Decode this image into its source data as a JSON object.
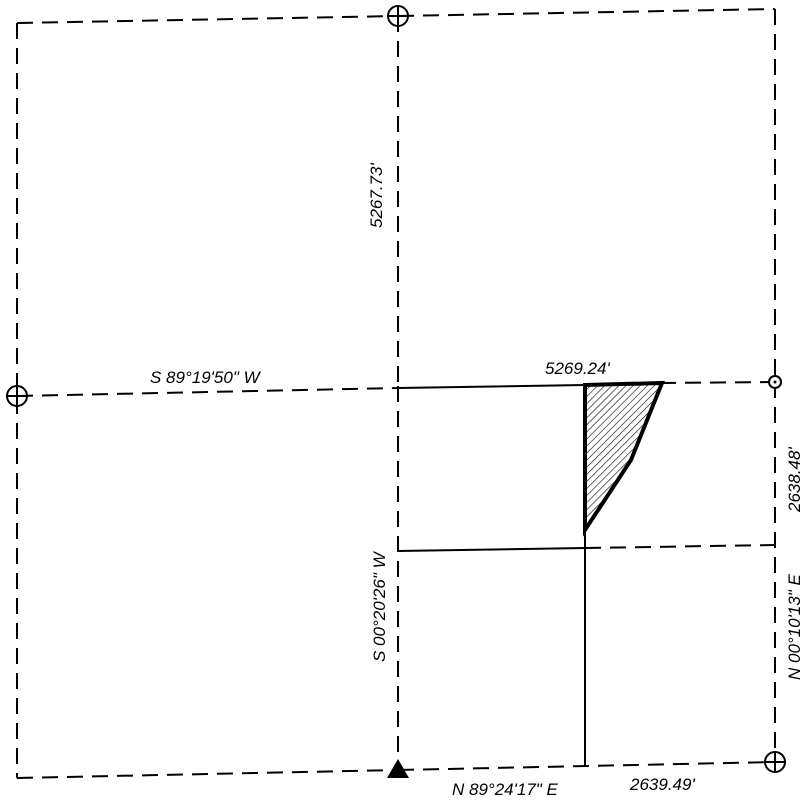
{
  "labels": {
    "bearing_middle_west": "S 89°19'50\" W",
    "distance_top": "5269.24'",
    "distance_north_vertical": "5267.73'",
    "bearing_center_vertical": "S 00°20'26\" W",
    "bearing_east_vertical": "N 00°10'13\" E",
    "distance_east_vertical": "2638.48'",
    "bearing_bottom": "N 89°24'17\" E",
    "distance_bottom": "2639.49'"
  },
  "markers": {
    "section_corner": "circle-cross-icon",
    "quarter_corner": "small-circle-icon",
    "point_of_beginning": "filled-triangle-icon"
  },
  "colors": {
    "line": "#000000",
    "parcel_hatch": "#000000",
    "background": "#ffffff"
  }
}
